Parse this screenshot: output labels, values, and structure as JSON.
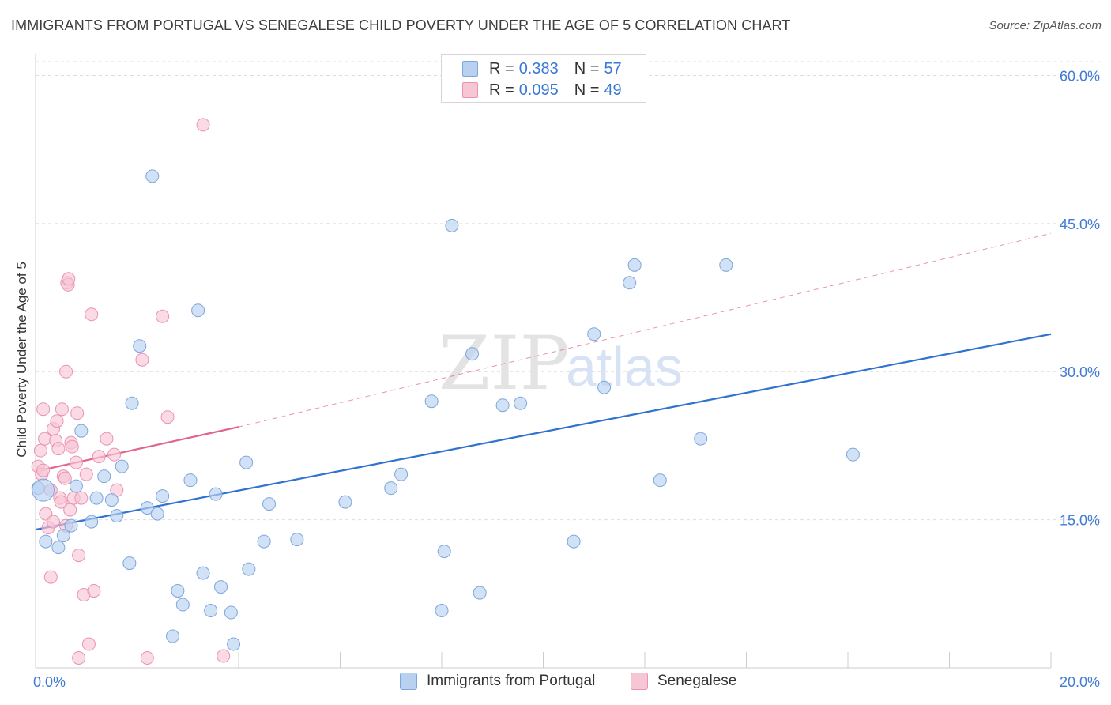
{
  "title": "IMMIGRANTS FROM PORTUGAL VS SENEGALESE CHILD POVERTY UNDER THE AGE OF 5 CORRELATION CHART",
  "source": "Source: ZipAtlas.com",
  "watermark": {
    "zip": "ZIP",
    "atlas": "atlas"
  },
  "legend": {
    "rows": [
      {
        "r_label": "R =",
        "r_value": "0.383",
        "n_label": "N =",
        "n_value": "57"
      },
      {
        "r_label": "R =",
        "r_value": "0.095",
        "n_label": "N =",
        "n_value": "49"
      }
    ]
  },
  "colors": {
    "blue_fill": "#b9d1f1",
    "blue_stroke": "#7ea6dc",
    "blue_line": "#2f72d0",
    "pink_fill": "#f7c6d5",
    "pink_stroke": "#ea93b0",
    "pink_line": "#e0648e",
    "axis_text": "#3f7ad4",
    "grid": "#dddddd"
  },
  "chart_data": {
    "type": "scatter",
    "title": "IMMIGRANTS FROM PORTUGAL VS SENEGALESE CHILD POVERTY UNDER THE AGE OF 5 CORRELATION CHART",
    "xlabel": "",
    "ylabel": "Child Poverty Under the Age of 5",
    "xlim": [
      0,
      20
    ],
    "ylim": [
      0,
      65
    ],
    "x_tick_labels": [
      "0.0%",
      "20.0%"
    ],
    "y_ticks": [
      15,
      30,
      45,
      60
    ],
    "y_tick_labels": [
      "15.0%",
      "30.0%",
      "45.0%",
      "60.0%"
    ],
    "grid": true,
    "legend_position": "top-center",
    "series": [
      {
        "name": "Immigrants from Portugal",
        "color": "#b9d1f1",
        "points": [
          [
            0.05,
            18.2
          ],
          [
            0.2,
            12.8
          ],
          [
            0.45,
            12.2
          ],
          [
            0.55,
            13.4
          ],
          [
            0.7,
            14.4
          ],
          [
            0.8,
            18.4
          ],
          [
            0.9,
            24.0
          ],
          [
            1.1,
            14.8
          ],
          [
            1.2,
            17.2
          ],
          [
            1.35,
            19.4
          ],
          [
            1.5,
            17.0
          ],
          [
            1.6,
            15.4
          ],
          [
            1.7,
            20.4
          ],
          [
            1.85,
            10.6
          ],
          [
            1.9,
            26.8
          ],
          [
            2.05,
            32.6
          ],
          [
            2.2,
            16.2
          ],
          [
            2.3,
            49.8
          ],
          [
            2.4,
            15.6
          ],
          [
            2.5,
            17.4
          ],
          [
            2.8,
            7.8
          ],
          [
            2.7,
            3.2
          ],
          [
            2.9,
            6.4
          ],
          [
            3.05,
            19.0
          ],
          [
            3.2,
            36.2
          ],
          [
            3.3,
            9.6
          ],
          [
            3.45,
            5.8
          ],
          [
            3.55,
            17.6
          ],
          [
            3.65,
            8.2
          ],
          [
            3.85,
            5.6
          ],
          [
            3.9,
            2.4
          ],
          [
            4.15,
            20.8
          ],
          [
            4.2,
            10.0
          ],
          [
            4.5,
            12.8
          ],
          [
            4.6,
            16.6
          ],
          [
            5.15,
            13.0
          ],
          [
            6.1,
            16.8
          ],
          [
            7.0,
            18.2
          ],
          [
            7.2,
            19.6
          ],
          [
            7.8,
            27.0
          ],
          [
            8.0,
            5.8
          ],
          [
            8.05,
            11.8
          ],
          [
            8.2,
            44.8
          ],
          [
            8.6,
            31.8
          ],
          [
            8.75,
            7.6
          ],
          [
            9.2,
            26.6
          ],
          [
            9.55,
            26.8
          ],
          [
            10.6,
            12.8
          ],
          [
            11.0,
            33.8
          ],
          [
            11.2,
            28.4
          ],
          [
            11.7,
            39.0
          ],
          [
            11.8,
            40.8
          ],
          [
            12.3,
            19.0
          ],
          [
            13.1,
            23.2
          ],
          [
            13.6,
            40.8
          ],
          [
            16.1,
            21.6
          ],
          [
            0.15,
            18.0
          ]
        ],
        "trend": {
          "x": [
            0,
            20
          ],
          "y": [
            14.0,
            33.8
          ]
        }
      },
      {
        "name": "Senegalese",
        "color": "#f7c6d5",
        "points": [
          [
            0.05,
            20.4
          ],
          [
            0.1,
            22.0
          ],
          [
            0.12,
            19.6
          ],
          [
            0.15,
            26.2
          ],
          [
            0.18,
            23.2
          ],
          [
            0.2,
            15.6
          ],
          [
            0.25,
            14.2
          ],
          [
            0.3,
            9.2
          ],
          [
            0.35,
            24.2
          ],
          [
            0.4,
            23.0
          ],
          [
            0.42,
            25.0
          ],
          [
            0.45,
            22.2
          ],
          [
            0.48,
            17.2
          ],
          [
            0.5,
            16.8
          ],
          [
            0.52,
            26.2
          ],
          [
            0.55,
            19.4
          ],
          [
            0.58,
            19.2
          ],
          [
            0.6,
            30.0
          ],
          [
            0.62,
            39.0
          ],
          [
            0.64,
            38.8
          ],
          [
            0.65,
            39.4
          ],
          [
            0.68,
            16.0
          ],
          [
            0.7,
            22.8
          ],
          [
            0.72,
            22.4
          ],
          [
            0.75,
            17.2
          ],
          [
            0.8,
            20.8
          ],
          [
            0.82,
            25.8
          ],
          [
            0.85,
            11.4
          ],
          [
            0.9,
            17.2
          ],
          [
            0.95,
            7.4
          ],
          [
            1.0,
            19.6
          ],
          [
            1.05,
            2.4
          ],
          [
            1.1,
            35.8
          ],
          [
            1.15,
            7.8
          ],
          [
            1.25,
            21.4
          ],
          [
            1.4,
            23.2
          ],
          [
            1.55,
            21.6
          ],
          [
            1.6,
            18.0
          ],
          [
            2.1,
            31.2
          ],
          [
            2.2,
            1.0
          ],
          [
            2.5,
            35.6
          ],
          [
            2.6,
            25.4
          ],
          [
            3.3,
            55.0
          ],
          [
            3.7,
            1.2
          ],
          [
            0.85,
            1.0
          ],
          [
            0.35,
            14.8
          ],
          [
            0.6,
            14.4
          ],
          [
            0.15,
            20.0
          ],
          [
            0.3,
            18.0
          ]
        ],
        "trend": {
          "x": [
            0,
            4
          ],
          "y": [
            19.9,
            24.4
          ]
        },
        "trend_extension": {
          "x": [
            4,
            20
          ],
          "y": [
            24.4,
            44.0
          ]
        }
      }
    ]
  },
  "bottom_legend": {
    "items": [
      "Immigrants from Portugal",
      "Senegalese"
    ]
  }
}
